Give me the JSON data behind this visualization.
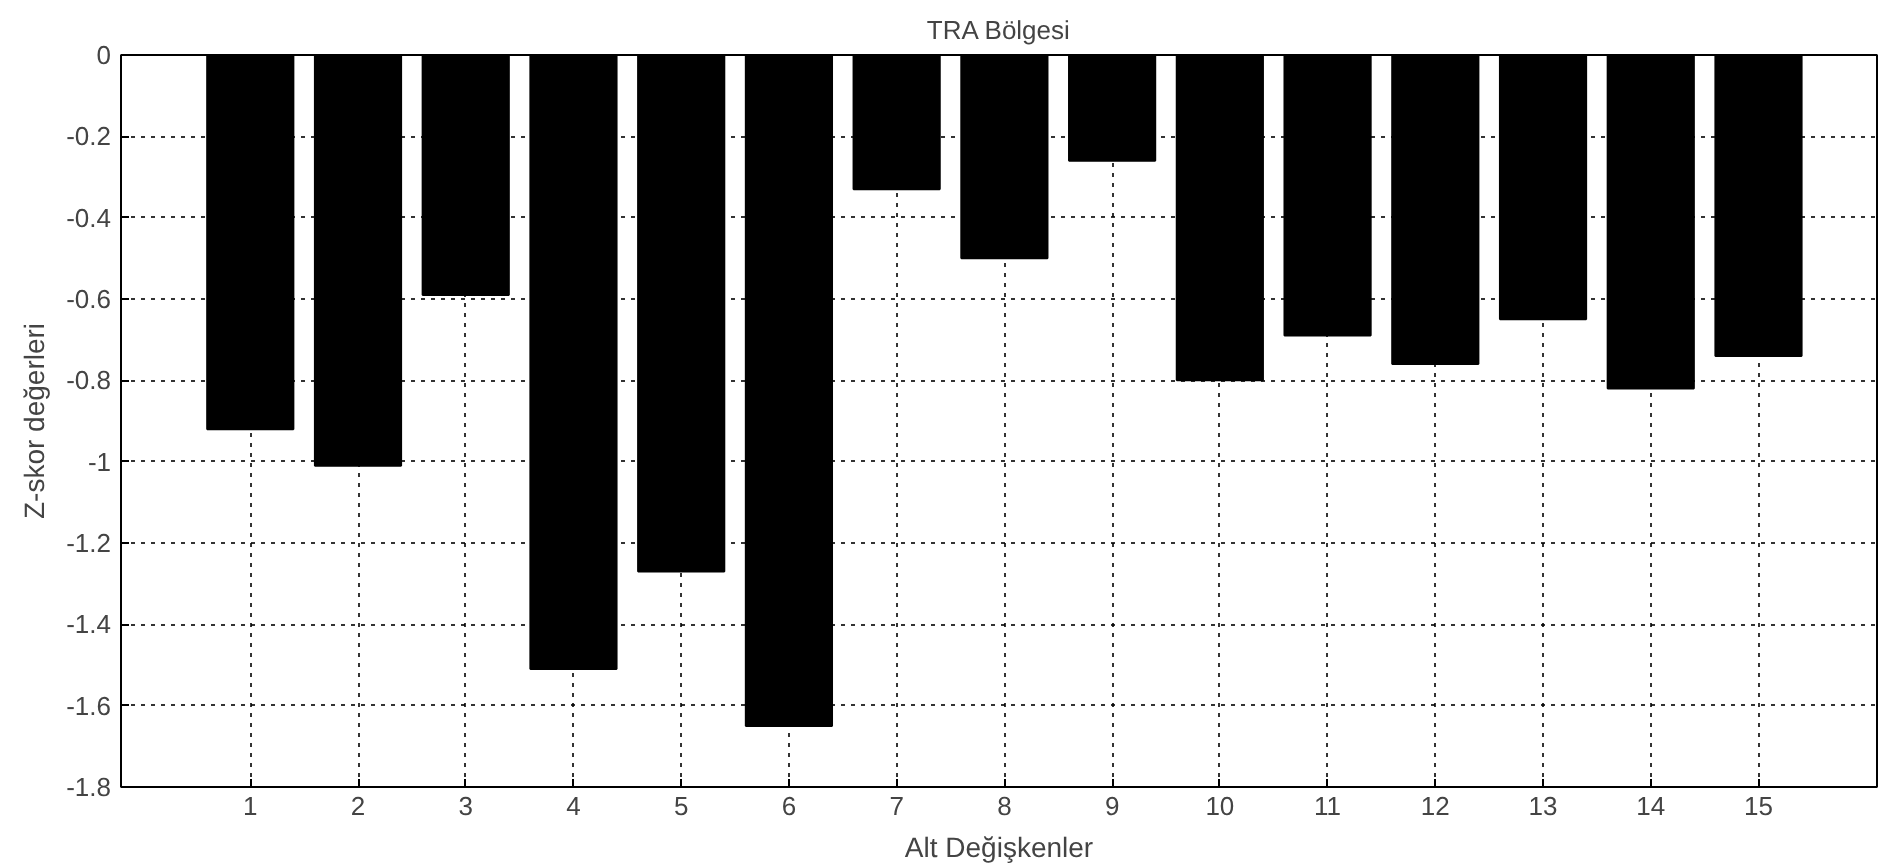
{
  "chart_data": {
    "type": "bar",
    "title": "TRA Bölgesi",
    "xlabel": "Alt Değişkenler",
    "ylabel": "Z-skor değerleri",
    "x": [
      1,
      2,
      3,
      4,
      5,
      6,
      7,
      8,
      9,
      10,
      11,
      12,
      13,
      14,
      15
    ],
    "values": [
      -0.92,
      -1.01,
      -0.59,
      -1.51,
      -1.27,
      -1.65,
      -0.33,
      -0.5,
      -0.26,
      -0.8,
      -0.69,
      -0.76,
      -0.65,
      -0.82,
      -0.74
    ],
    "color": "#000000",
    "xlim": [
      -0.2,
      16.1
    ],
    "xticks": [
      1,
      2,
      3,
      4,
      5,
      6,
      7,
      8,
      9,
      10,
      11,
      12,
      13,
      14,
      15
    ],
    "ylim": [
      -1.8,
      0
    ],
    "yticks": [
      -1.8,
      -1.6,
      -1.4,
      -1.2,
      -1,
      -0.8,
      -0.6,
      -0.4,
      -0.2,
      0
    ],
    "grid": true,
    "line_style": "dotted"
  }
}
